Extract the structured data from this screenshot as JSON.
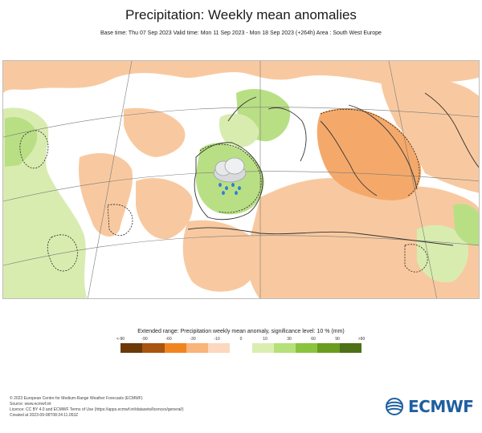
{
  "header": {
    "title": "Precipitation: Weekly mean anomalies",
    "subtitle": "Base time: Thu 07 Sep 2023 Valid time: Mon 11 Sep 2023 - Mon 18 Sep 2023 (+264h) Area : South West Europe"
  },
  "legend": {
    "title": "Extended range: Precipitation weekly mean anomaly, significance level: 10 % (mm)",
    "ticks": [
      "<-90",
      "-90",
      "-60",
      "-30",
      "-10",
      "0",
      "10",
      "30",
      "60",
      "90",
      ">90"
    ],
    "colors": [
      "#6b3a08",
      "#a8550f",
      "#f0851f",
      "#f8b47a",
      "#fbd8bf",
      "#ffffff",
      "#dbeeb2",
      "#b5e07a",
      "#8ac43e",
      "#6a9c1f",
      "#4e7016"
    ]
  },
  "map": {
    "icon": "rain-cloud-icon",
    "colors": {
      "dry_light": "#f8c9a0",
      "dry_medium": "#f4a96a",
      "wet_light": "#d9ecb0",
      "wet_medium": "#b9df85",
      "border": "#333333",
      "graticule": "#7a7a7a"
    }
  },
  "footer": {
    "lines": [
      "© 2023 European Centre for Medium-Range Weather Forecasts (ECMWF)",
      "Source: www.ecmwf.int",
      "Licence: CC BY 4.0 and ECMWF Terms of Use (https://apps.ecmwf.int/datasets/licences/general/)",
      "Created at 2023-09-08T08:24:11.053Z"
    ]
  },
  "logo": {
    "text": "ECMWF",
    "color": "#1f5fa0"
  }
}
